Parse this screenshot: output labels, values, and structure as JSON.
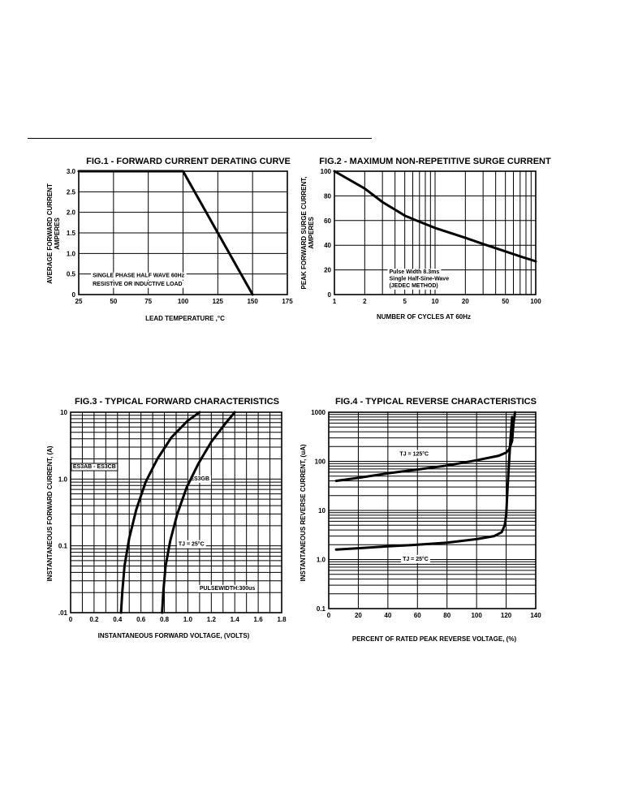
{
  "chart_data": [
    {
      "id": "fig1",
      "type": "line",
      "title": "FIG.1 - FORWARD CURRENT DERATING CURVE",
      "xlabel": "LEAD TEMPERATURE ,°C",
      "ylabel_lines": [
        "AVERAGE FORWARD CURRENT",
        "AMPERES"
      ],
      "x_scale": "linear",
      "y_scale": "linear",
      "xlim": [
        25,
        175
      ],
      "ylim": [
        0,
        3.0
      ],
      "x_ticks": [
        25,
        50,
        75,
        100,
        125,
        150,
        175
      ],
      "x_tick_labels": [
        "25",
        "50",
        "75",
        "100",
        "125",
        "150",
        "175"
      ],
      "y_ticks": [
        0,
        0.5,
        1.0,
        1.5,
        2.0,
        2.5,
        3.0
      ],
      "y_tick_labels": [
        "0",
        "0.5",
        "1.0",
        "1.5",
        "2.0",
        "2.5",
        "3.0"
      ],
      "grid": true,
      "annotations": [
        {
          "text": "SINGLE PHASE HALF WAVE 60Hz",
          "x": 35,
          "y": 0.42
        },
        {
          "text": "RESISTIVE OR INDUCTIVE LOAD",
          "x": 35,
          "y": 0.22
        }
      ],
      "series": [
        {
          "x": [
            25,
            100,
            150
          ],
          "y": [
            3.0,
            3.0,
            0
          ]
        }
      ]
    },
    {
      "id": "fig2",
      "type": "line",
      "title": "FIG.2 - MAXIMUM NON-REPETITIVE SURGE CURRENT",
      "xlabel": "NUMBER OF CYCLES AT 60Hz",
      "ylabel_lines": [
        "PEAK FORWARD SURGE CURRENT,",
        "AMPERES"
      ],
      "x_scale": "log",
      "y_scale": "linear",
      "xlim": [
        1,
        100
      ],
      "ylim": [
        0,
        100
      ],
      "x_ticks": [
        1,
        2,
        5,
        10,
        20,
        50,
        100
      ],
      "x_tick_labels": [
        "1",
        "2",
        "5",
        "10",
        "20",
        "50",
        "100"
      ],
      "y_ticks": [
        0,
        20,
        40,
        60,
        80,
        100
      ],
      "y_tick_labels": [
        "0",
        "20",
        "40",
        "60",
        "80",
        "100"
      ],
      "grid": true,
      "annotations": [
        {
          "text": "Pulse Width 8.3ms",
          "x": 3.5,
          "y": 17
        },
        {
          "text": "Single Half-Sine-Wave",
          "x": 3.5,
          "y": 11.5
        },
        {
          "text": "(JEDEC METHOD)",
          "x": 3.5,
          "y": 6
        }
      ],
      "series": [
        {
          "x": [
            1,
            2,
            3,
            5,
            7,
            10,
            20,
            30,
            50,
            70,
            100
          ],
          "y": [
            100,
            86,
            75,
            64,
            59,
            54,
            46,
            41,
            35,
            31,
            27
          ]
        }
      ]
    },
    {
      "id": "fig3",
      "type": "line",
      "title": "FIG.3 - TYPICAL FORWARD CHARACTERISTICS",
      "xlabel": "INSTANTANEOUS FORWARD VOLTAGE, (VOLTS)",
      "ylabel_lines": [
        "INSTANTANEOUS  FORWARD CURRENT, (A)"
      ],
      "x_scale": "linear",
      "y_scale": "log",
      "xlim": [
        0,
        1.8
      ],
      "ylim": [
        0.01,
        10
      ],
      "x_ticks": [
        0,
        0.2,
        0.4,
        0.6,
        0.8,
        1.0,
        1.2,
        1.4,
        1.6,
        1.8
      ],
      "x_tick_labels": [
        "0",
        "0.2",
        "0.4",
        "0.6",
        "0.8",
        "1.0",
        "1.2",
        "1.4",
        "1.6",
        "1.8"
      ],
      "y_ticks": [
        0.01,
        0.1,
        1.0,
        10
      ],
      "y_tick_labels": [
        ".01",
        "0.1",
        "1.0",
        "10"
      ],
      "grid": true,
      "annotations": [
        {
          "text": "ES3AB - ES3CB",
          "x": 0.02,
          "y": 1.45,
          "boxed": true
        },
        {
          "text": "ES3GB",
          "x": 1.02,
          "y": 0.96
        },
        {
          "text": "TJ = 25°C",
          "x": 0.92,
          "y": 0.1
        },
        {
          "text": "PULSEWIDTH:300us",
          "x": 1.1,
          "y": 0.022
        }
      ],
      "series": [
        {
          "name": "ES3AB - ES3CB",
          "x": [
            0.43,
            0.44,
            0.46,
            0.5,
            0.56,
            0.64,
            0.74,
            0.86,
            1.0,
            1.1
          ],
          "y": [
            0.01,
            0.02,
            0.05,
            0.13,
            0.35,
            0.9,
            2.0,
            4.2,
            7.5,
            10
          ]
        },
        {
          "name": "ES3GB",
          "x": [
            0.78,
            0.79,
            0.81,
            0.85,
            0.91,
            0.99,
            1.09,
            1.2,
            1.32,
            1.4
          ],
          "y": [
            0.01,
            0.02,
            0.05,
            0.12,
            0.3,
            0.75,
            1.7,
            3.6,
            6.8,
            10
          ]
        }
      ]
    },
    {
      "id": "fig4",
      "type": "line",
      "title": "FIG.4 - TYPICAL REVERSE CHARACTERISTICS",
      "xlabel": "PERCENT OF RATED PEAK REVERSE VOLTAGE, (%)",
      "ylabel_lines": [
        "INSTANTANEOUS REVERSE CURRENT, (uA)"
      ],
      "x_scale": "linear",
      "y_scale": "log",
      "xlim": [
        0,
        140
      ],
      "ylim": [
        0.1,
        1000
      ],
      "x_ticks": [
        0,
        20,
        40,
        60,
        80,
        100,
        120,
        140
      ],
      "x_tick_labels": [
        "0",
        "20",
        "40",
        "60",
        "80",
        "100",
        "120",
        "140"
      ],
      "y_ticks": [
        0.1,
        1.0,
        10,
        100,
        1000
      ],
      "y_tick_labels": [
        "0.1",
        "1.0",
        "10",
        "100",
        "1000"
      ],
      "grid": true,
      "annotations": [
        {
          "text": "TJ = 125°C",
          "x": 48,
          "y": 130
        },
        {
          "text": "TJ = 25°C",
          "x": 50,
          "y": 0.95
        }
      ],
      "series": [
        {
          "name": "TJ = 125°C",
          "x": [
            5,
            20,
            40,
            60,
            80,
            100,
            115,
            120,
            122,
            124,
            125,
            126
          ],
          "y": [
            40,
            46,
            57,
            68,
            82,
            105,
            130,
            150,
            175,
            260,
            600,
            1000
          ]
        },
        {
          "name": "TJ = 25°C",
          "x": [
            5,
            20,
            40,
            60,
            80,
            100,
            112,
            117,
            119,
            120,
            121,
            122,
            123,
            124
          ],
          "y": [
            1.6,
            1.7,
            1.85,
            2.0,
            2.2,
            2.6,
            3.0,
            3.6,
            5,
            8,
            30,
            100,
            300,
            800
          ]
        }
      ]
    }
  ]
}
